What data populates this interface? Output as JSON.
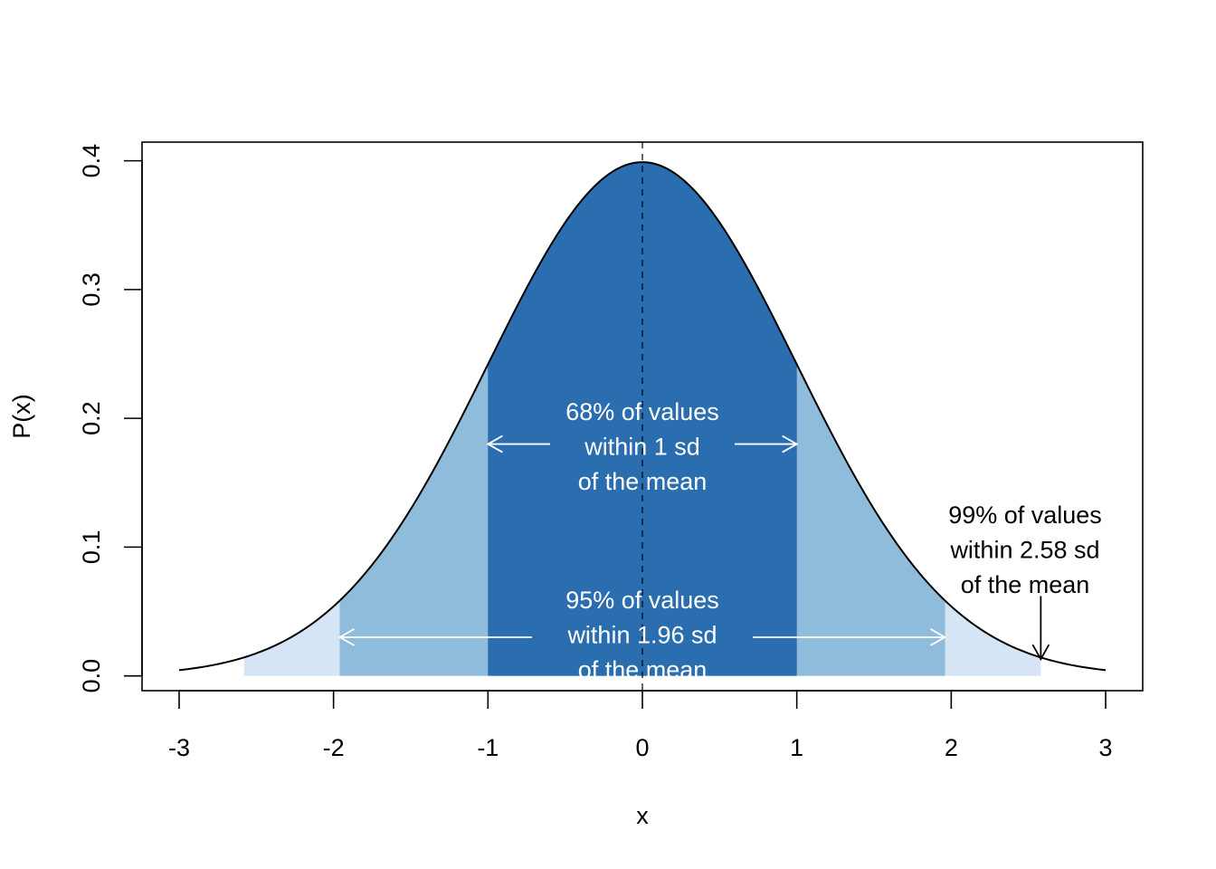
{
  "chart_data": {
    "type": "area",
    "title": "",
    "xlabel": "x",
    "ylabel": "P(x)",
    "xlim": [
      -3.24,
      3.24
    ],
    "ylim": [
      -0.0115,
      0.4145
    ],
    "x_ticks": [
      -3,
      -2,
      -1,
      0,
      1,
      2,
      3
    ],
    "x_tick_labels": [
      "-3",
      "-2",
      "-1",
      "0",
      "1",
      "2",
      "3"
    ],
    "y_ticks": [
      0.0,
      0.1,
      0.2,
      0.3,
      0.4
    ],
    "y_tick_labels": [
      "0.0",
      "0.1",
      "0.2",
      "0.3",
      "0.4"
    ],
    "curve": {
      "name": "standard normal density",
      "mean": 0,
      "sd": 1,
      "x_range": [
        -3,
        3
      ]
    },
    "mean_line": {
      "x": 0,
      "style": "dashed"
    },
    "bands": [
      {
        "from": -2.58,
        "to": 2.58,
        "color": "#d6e5f5",
        "percent": 99
      },
      {
        "from": -1.96,
        "to": 1.96,
        "color": "#8fbcdb",
        "percent": 95
      },
      {
        "from": -1,
        "to": 1,
        "color": "#2b6eb0",
        "percent": 68
      }
    ],
    "annotations": [
      {
        "id": "ann68",
        "lines": [
          "68% of values",
          "within 1 sd",
          "of the mean"
        ],
        "color": "#ffffff",
        "arrow_y": 0.18,
        "arrow_from": -1,
        "arrow_to": 1
      },
      {
        "id": "ann95",
        "lines": [
          "95% of values",
          "within 1.96 sd",
          "of the mean"
        ],
        "color": "#ffffff",
        "arrow_y": 0.03,
        "arrow_from": -1.96,
        "arrow_to": 1.96
      },
      {
        "id": "ann99",
        "lines": [
          "99% of values",
          "within 2.58 sd",
          "of the mean"
        ],
        "color": "#000000",
        "arrow_x": 2.58,
        "arrow_from_y": 0.062,
        "arrow_to_y": 0.013
      }
    ]
  }
}
